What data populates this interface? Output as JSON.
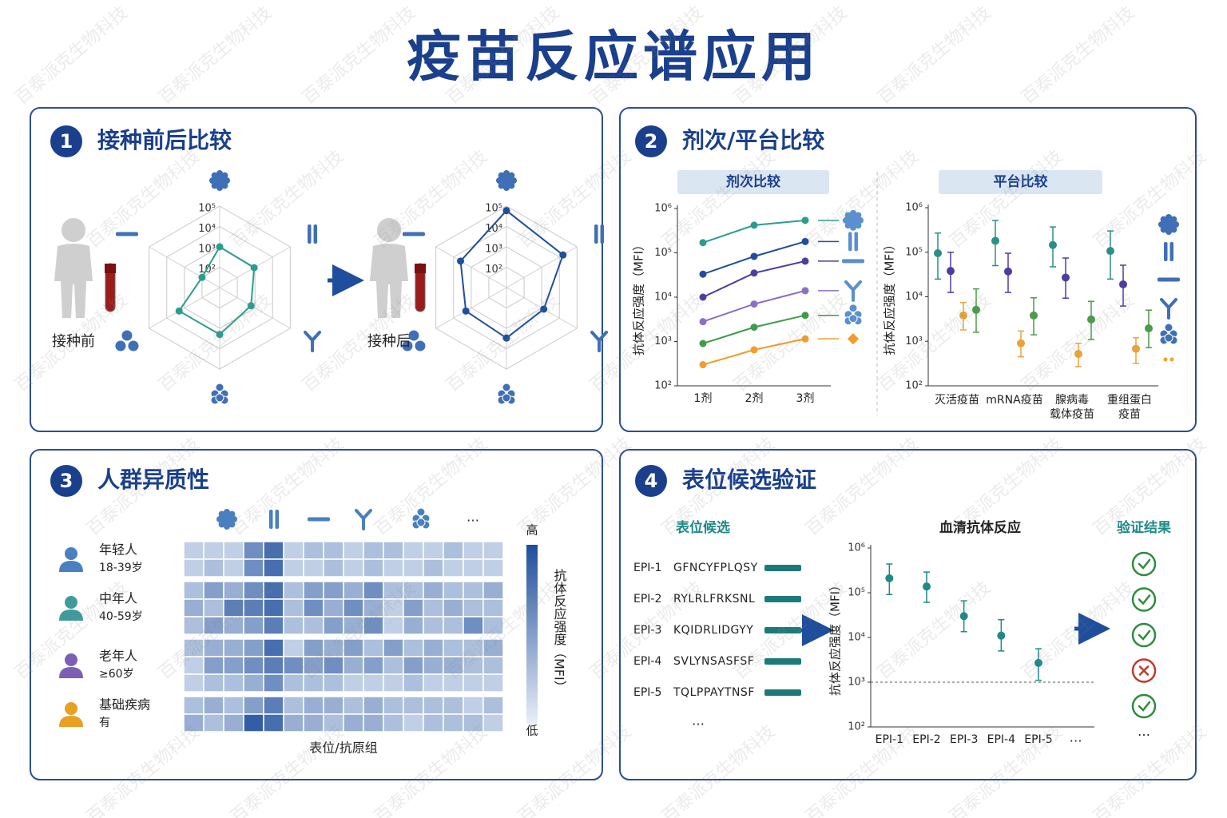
{
  "title": "疫苗反应谱应用",
  "watermark": "百泰派克生物科技",
  "panels": [
    {
      "number": "1",
      "heading": "接种前后比较"
    },
    {
      "number": "2",
      "heading": "剂次/平台比较"
    },
    {
      "number": "3",
      "heading": "人群异质性"
    },
    {
      "number": "4",
      "heading": "表位候选验证"
    }
  ],
  "chart_data": [
    {
      "type": "radar",
      "label": "接种前",
      "color": "#2a9d8f",
      "log": true,
      "values": [
        1000,
        900,
        600,
        2000,
        2000,
        100
      ],
      "rlim": [
        10,
        100000
      ],
      "rticks": [
        {
          "value": 100,
          "label": "10²"
        },
        {
          "value": 1000,
          "label": "10³"
        },
        {
          "value": 10000,
          "label": "10⁴"
        },
        {
          "value": 100000,
          "label": "10⁵"
        }
      ]
    },
    {
      "type": "radar",
      "label": "接种后",
      "color": "#1f4e9c",
      "log": true,
      "values": [
        60000,
        16000,
        1300,
        3000,
        2000,
        4000
      ],
      "rlim": [
        10,
        100000
      ],
      "rticks": [
        {
          "value": 100,
          "label": "10²"
        },
        {
          "value": 1000,
          "label": "10³"
        },
        {
          "value": 10000,
          "label": "10⁴"
        },
        {
          "value": 100000,
          "label": "10⁵"
        }
      ]
    },
    {
      "type": "line",
      "subtitle": "剂次比较",
      "ylabel": "抗体反应强度（MFI）",
      "log": true,
      "categories": [
        "1剂",
        "2剂",
        "3剂"
      ],
      "series": [
        {
          "color": "#2a9d8f",
          "values": [
            170000,
            420000,
            540000
          ]
        },
        {
          "color": "#1f4e9c",
          "values": [
            33000,
            83000,
            180000
          ]
        },
        {
          "color": "#4b3f9e",
          "values": [
            10000,
            35000,
            65000
          ]
        },
        {
          "color": "#8a6fc7",
          "values": [
            2800,
            7000,
            14000
          ]
        },
        {
          "color": "#3f9a4a",
          "values": [
            900,
            2100,
            3900
          ]
        },
        {
          "color": "#f39c28",
          "values": [
            300,
            650,
            1150
          ]
        }
      ],
      "ylim": [
        100,
        1000000
      ],
      "yticks": [
        {
          "value": 100,
          "label": "10²"
        },
        {
          "value": 1000,
          "label": "10³"
        },
        {
          "value": 10000,
          "label": "10⁴"
        },
        {
          "value": 100000,
          "label": "10⁵"
        },
        {
          "value": 1000000,
          "label": "10⁶"
        }
      ]
    },
    {
      "type": "errorbar",
      "subtitle": "平台比较",
      "ylabel": "抗体反应强度（MFI）",
      "log": true,
      "categories": [
        [
          "灭活疫苗"
        ],
        [
          "mRNA疫苗"
        ],
        [
          "腺病毒",
          "载体疫苗"
        ],
        [
          "重组蛋白",
          "疫苗"
        ]
      ],
      "series": [
        {
          "color": "#2a8f85",
          "values": [
            95000,
            180000,
            145000,
            107000
          ],
          "low": [
            25000,
            50000,
            47000,
            25000
          ],
          "high": [
            270000,
            520000,
            370000,
            300000
          ]
        },
        {
          "color": "#4b3f9e",
          "values": [
            38000,
            37000,
            27000,
            19000
          ],
          "low": [
            12500,
            12500,
            9300,
            6200
          ],
          "high": [
            100000,
            95000,
            74000,
            51000
          ]
        },
        {
          "color": "#e8a33a",
          "values": [
            3800,
            900,
            520,
            680
          ],
          "low": [
            1800,
            450,
            270,
            320
          ],
          "high": [
            7400,
            1700,
            900,
            1200
          ]
        },
        {
          "color": "#4c9a4a",
          "values": [
            5100,
            3800,
            3100,
            1950
          ],
          "low": [
            1600,
            1400,
            1100,
            720
          ],
          "high": [
            15000,
            9500,
            7900,
            5000
          ]
        }
      ],
      "ylim": [
        100,
        1000000
      ],
      "yticks": [
        {
          "value": 100,
          "label": "10²"
        },
        {
          "value": 1000,
          "label": "10³"
        },
        {
          "value": 10000,
          "label": "10⁴"
        },
        {
          "value": 100000,
          "label": "10⁵"
        },
        {
          "value": 1000000,
          "label": "10⁶"
        }
      ]
    },
    {
      "type": "heatmap",
      "xlabel": "表位/抗原组",
      "column_more": "…",
      "color": "#1f4e9c",
      "colorbar_high": "高",
      "colorbar_low": "低",
      "colorbar_label": "抗体反应强度（MFI）",
      "clim": [
        0,
        1
      ],
      "groups": [
        {
          "name": "年轻人",
          "detail": "18-39岁",
          "color": "#4a7fc0",
          "values": [
            [
              0.2,
              0.2,
              0.2,
              0.6,
              0.8,
              0.2,
              0.3,
              0.3,
              0.2,
              0.3,
              0.3,
              0.2,
              0.2,
              0.3,
              0.2,
              0.2
            ],
            [
              0.2,
              0.3,
              0.2,
              0.6,
              0.8,
              0.2,
              0.2,
              0.3,
              0.2,
              0.3,
              0.2,
              0.2,
              0.3,
              0.2,
              0.2,
              0.2
            ]
          ]
        },
        {
          "name": "中年人",
          "detail": "40-59岁",
          "color": "#3f9a9a",
          "values": [
            [
              0.3,
              0.5,
              0.4,
              0.6,
              0.8,
              0.3,
              0.5,
              0.5,
              0.4,
              0.6,
              0.3,
              0.3,
              0.4,
              0.3,
              0.3,
              0.4
            ],
            [
              0.4,
              0.3,
              0.7,
              0.7,
              0.8,
              0.3,
              0.6,
              0.4,
              0.6,
              0.4,
              0.2,
              0.5,
              0.3,
              0.4,
              0.3,
              0.3
            ],
            [
              0.3,
              0.5,
              0.4,
              0.5,
              0.7,
              0.3,
              0.3,
              0.5,
              0.4,
              0.6,
              0.2,
              0.4,
              0.3,
              0.3,
              0.6,
              0.3
            ]
          ]
        },
        {
          "name": "老年人",
          "detail": "≥60岁",
          "color": "#7a5fb5",
          "values": [
            [
              0.3,
              0.4,
              0.4,
              0.5,
              0.8,
              0.2,
              0.5,
              0.4,
              0.5,
              0.3,
              0.5,
              0.3,
              0.4,
              0.3,
              0.3,
              0.4
            ],
            [
              0.2,
              0.5,
              0.5,
              0.6,
              0.7,
              0.6,
              0.5,
              0.6,
              0.4,
              0.5,
              0.3,
              0.5,
              0.4,
              0.4,
              0.3,
              0.3
            ],
            [
              0.2,
              0.3,
              0.3,
              0.4,
              0.6,
              0.3,
              0.3,
              0.3,
              0.2,
              0.2,
              0.2,
              0.3,
              0.2,
              0.2,
              0.2,
              0.2
            ]
          ]
        },
        {
          "name": "基础疾病",
          "detail": "有",
          "color": "#e8a020",
          "values": [
            [
              0.3,
              0.4,
              0.3,
              0.5,
              0.7,
              0.3,
              0.4,
              0.4,
              0.3,
              0.4,
              0.3,
              0.3,
              0.3,
              0.3,
              0.2,
              0.3
            ],
            [
              0.4,
              0.3,
              0.4,
              0.9,
              0.8,
              0.4,
              0.4,
              0.3,
              0.4,
              0.4,
              0.3,
              0.2,
              0.3,
              0.3,
              0.3,
              0.2
            ]
          ]
        }
      ]
    },
    {
      "type": "errorbar",
      "left_title": "表位候选",
      "title": "血清抗体反应",
      "right_title": "验证结果",
      "ylabel": "抗体反应强度（MFI）",
      "log": true,
      "epitopes": [
        {
          "id": "EPI-1",
          "sequence": "GFNCYFPLQSY"
        },
        {
          "id": "EPI-2",
          "sequence": "RYLRLFRKSNL"
        },
        {
          "id": "EPI-3",
          "sequence": "KQIDRLIDGYY"
        },
        {
          "id": "EPI-4",
          "sequence": "SVLYNSASFSF"
        },
        {
          "id": "EPI-5",
          "sequence": "TQLPPAYTNSF"
        }
      ],
      "epitope_more": "…",
      "categories": [
        "EPI-1",
        "EPI-2",
        "EPI-3",
        "EPI-4",
        "EPI-5"
      ],
      "x_more": "…",
      "series": [
        {
          "color": "#1f8a85",
          "values": [
            210000,
            138000,
            30000,
            11000,
            2700
          ],
          "low": [
            91000,
            61000,
            13500,
            5000,
            1100
          ],
          "high": [
            440000,
            290000,
            66000,
            25000,
            5600
          ]
        }
      ],
      "threshold": 1000,
      "validated": [
        true,
        true,
        true,
        false,
        true
      ],
      "result_more": "…",
      "ylim": [
        100,
        1000000
      ],
      "yticks": [
        {
          "value": 100,
          "label": "10²"
        },
        {
          "value": 1000,
          "label": "10³"
        },
        {
          "value": 10000,
          "label": "10⁴"
        },
        {
          "value": 100000,
          "label": "10⁵"
        },
        {
          "value": 1000000,
          "label": "10⁶"
        }
      ]
    }
  ]
}
